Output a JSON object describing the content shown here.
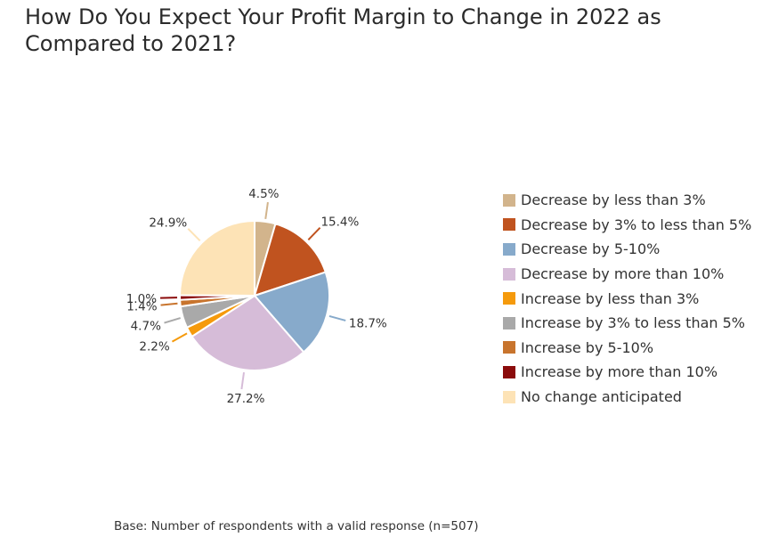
{
  "title": "How Do You Expect Your Profit Margin to Change in 2022 as Compared to 2021?",
  "footnote": "Base: Number of respondents with a valid response (n=507)",
  "chart_data": {
    "type": "pie",
    "title": "How Do You Expect Your Profit Margin to Change in 2022 as Compared to 2021?",
    "legend_position": "right",
    "slices": [
      {
        "label": "Decrease by less than 3%",
        "value": 4.5,
        "display": "4.5%",
        "color": "#d2b48c"
      },
      {
        "label": "Decrease by 3% to less than 5%",
        "value": 15.4,
        "display": "15.4%",
        "color": "#c0531f"
      },
      {
        "label": "Decrease by 5-10%",
        "value": 18.7,
        "display": "18.7%",
        "color": "#87aacb"
      },
      {
        "label": "Decrease by more than 10%",
        "value": 27.2,
        "display": "27.2%",
        "color": "#d6bcd8"
      },
      {
        "label": "Increase by less than 3%",
        "value": 2.2,
        "display": "2.2%",
        "color": "#f59a0c"
      },
      {
        "label": "Increase by 3% to less than 5%",
        "value": 4.7,
        "display": "4.7%",
        "color": "#a9a9a9"
      },
      {
        "label": "Increase by 5-10%",
        "value": 1.4,
        "display": "1.4%",
        "color": "#c8742d"
      },
      {
        "label": "Increase by more than 10%",
        "value": 1.0,
        "display": "1.0%",
        "color": "#8b0b0b"
      },
      {
        "label": "No change anticipated",
        "value": 24.9,
        "display": "24.9%",
        "color": "#fde3b6"
      }
    ]
  }
}
